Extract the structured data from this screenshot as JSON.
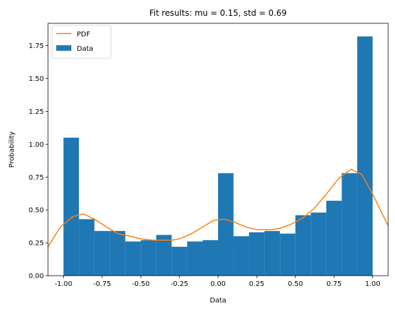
{
  "chart_data": {
    "type": "bar",
    "title": "Fit results: mu = 0.15,  std = 0.69",
    "xlabel": "Data",
    "ylabel": "Probability",
    "xlim": [
      -1.1,
      1.1
    ],
    "ylim": [
      0,
      1.92
    ],
    "xticks": [
      "-1.00",
      "-0.75",
      "-0.50",
      "-0.25",
      "0.00",
      "0.25",
      "0.50",
      "0.75",
      "1.00"
    ],
    "xtick_values": [
      -1.0,
      -0.75,
      -0.5,
      -0.25,
      0.0,
      0.25,
      0.5,
      0.75,
      1.0
    ],
    "yticks": [
      "0.00",
      "0.25",
      "0.50",
      "0.75",
      "1.00",
      "1.25",
      "1.50",
      "1.75"
    ],
    "ytick_values": [
      0,
      0.25,
      0.5,
      0.75,
      1.0,
      1.25,
      1.5,
      1.75
    ],
    "legend_position": "top-left",
    "grid": false,
    "series": [
      {
        "name": "Data",
        "type": "histogram",
        "color": "#1f77b4",
        "bin_edges": [
          -1.0,
          -0.9,
          -0.8,
          -0.7,
          -0.6,
          -0.5,
          -0.4,
          -0.3,
          -0.2,
          -0.1,
          0.0,
          0.1,
          0.2,
          0.3,
          0.4,
          0.5,
          0.6,
          0.7,
          0.8,
          0.9,
          1.0
        ],
        "values": [
          1.05,
          0.43,
          0.34,
          0.34,
          0.26,
          0.27,
          0.31,
          0.22,
          0.26,
          0.27,
          0.78,
          0.3,
          0.33,
          0.34,
          0.32,
          0.46,
          0.48,
          0.57,
          0.78,
          1.82
        ]
      },
      {
        "name": "PDF",
        "type": "line",
        "color": "#ff7f0e",
        "x": [
          -1.1,
          -1.02,
          -0.94,
          -0.87,
          -0.8,
          -0.72,
          -0.65,
          -0.57,
          -0.5,
          -0.42,
          -0.35,
          -0.3,
          -0.25,
          -0.17,
          -0.1,
          -0.03,
          0.04,
          0.1,
          0.18,
          0.25,
          0.3,
          0.35,
          0.4,
          0.47,
          0.55,
          0.62,
          0.7,
          0.78,
          0.86,
          0.93,
          1.0,
          1.05,
          1.1
        ],
        "values": [
          0.22,
          0.37,
          0.45,
          0.47,
          0.43,
          0.37,
          0.32,
          0.3,
          0.28,
          0.27,
          0.27,
          0.27,
          0.28,
          0.32,
          0.37,
          0.42,
          0.43,
          0.41,
          0.37,
          0.35,
          0.35,
          0.35,
          0.36,
          0.39,
          0.44,
          0.51,
          0.62,
          0.74,
          0.81,
          0.77,
          0.62,
          0.5,
          0.38
        ]
      }
    ]
  }
}
